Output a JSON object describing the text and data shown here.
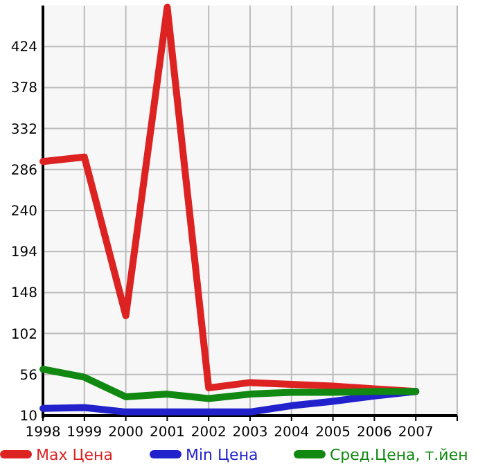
{
  "chart_data": {
    "type": "line",
    "x": [
      1998,
      1999,
      2000,
      2001,
      2002,
      2003,
      2004,
      2005,
      2006,
      2007
    ],
    "xlim": [
      1998,
      2008
    ],
    "xticks": [
      1998,
      1999,
      2000,
      2001,
      2002,
      2003,
      2004,
      2005,
      2006,
      2007
    ],
    "ylim": [
      10,
      470
    ],
    "yticks": [
      10,
      56,
      102,
      148,
      194,
      240,
      286,
      332,
      378,
      424
    ],
    "grid": true,
    "legend": "bottom",
    "marker": "none",
    "line_style": "solid",
    "series": [
      {
        "name": "Max Цена",
        "color": "#dd2222",
        "values": [
          295,
          300,
          122,
          468,
          41,
          47,
          45,
          43,
          40,
          37
        ]
      },
      {
        "name": "Min Цена",
        "color": "#2222cc",
        "values": [
          18,
          19,
          14,
          14,
          14,
          14,
          21,
          26,
          32,
          37
        ]
      },
      {
        "name": "Сред.Цена, т.йен",
        "color": "#118811",
        "values": [
          62,
          53,
          31,
          34,
          29,
          34,
          36,
          36,
          37,
          37
        ]
      }
    ]
  }
}
